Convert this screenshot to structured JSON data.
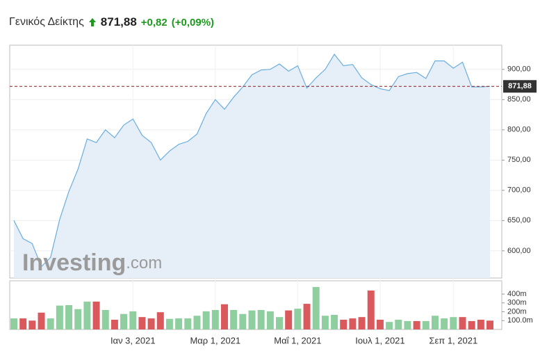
{
  "header": {
    "title": "Γενικός Δείκτης",
    "price": "871,88",
    "change": "+0,82",
    "change_pct": "(+0,09%)"
  },
  "watermark": {
    "brand": "Investing",
    "suffix": ".com"
  },
  "chart_data": [
    {
      "type": "area",
      "categories": [
        null,
        null,
        null,
        null,
        null,
        null,
        null,
        null,
        null,
        null,
        null,
        null,
        null,
        "Ιαν 3, 2021",
        null,
        null,
        null,
        null,
        null,
        null,
        null,
        null,
        "Μαρ 1, 2021",
        null,
        null,
        null,
        null,
        null,
        null,
        null,
        null,
        "Μαΐ 1, 2021",
        null,
        null,
        null,
        null,
        null,
        null,
        null,
        null,
        "Ιουλ 1, 2021",
        null,
        null,
        null,
        null,
        null,
        null,
        null,
        "Σεπ 1, 2021",
        null,
        null,
        null,
        null
      ],
      "values": [
        650,
        620,
        612,
        574,
        589,
        652,
        698,
        735,
        785,
        779,
        800,
        787,
        808,
        818,
        791,
        779,
        750,
        765,
        776,
        781,
        793,
        827,
        850,
        834,
        854,
        871,
        891,
        899,
        900,
        909,
        897,
        906,
        869,
        886,
        900,
        925,
        906,
        908,
        886,
        875,
        868,
        865,
        888,
        893,
        895,
        885,
        914,
        914,
        902,
        912,
        871,
        871,
        871.88
      ],
      "color": "#6aaee0",
      "fill": "#e6eef7",
      "ylim": [
        555,
        940
      ],
      "yticks": [
        {
          "value": 600,
          "label": "600,00"
        },
        {
          "value": 650,
          "label": "650,00"
        },
        {
          "value": 700,
          "label": "700,00"
        },
        {
          "value": 750,
          "label": "750,00"
        },
        {
          "value": 800,
          "label": "800,00"
        },
        {
          "value": 850,
          "label": "850,00"
        },
        {
          "value": 900,
          "label": "900,00"
        }
      ],
      "current": {
        "value": 871.88,
        "label": "871,88"
      },
      "current_color": "#8b1a1a",
      "grid": true
    },
    {
      "type": "bar",
      "values": [
        125,
        125,
        100,
        190,
        125,
        270,
        275,
        230,
        315,
        315,
        220,
        110,
        175,
        205,
        140,
        125,
        195,
        120,
        125,
        125,
        155,
        205,
        220,
        285,
        220,
        175,
        215,
        220,
        205,
        140,
        215,
        235,
        290,
        480,
        155,
        165,
        110,
        125,
        140,
        440,
        110,
        85,
        110,
        95,
        95,
        95,
        155,
        125,
        140,
        140,
        95,
        110,
        100
      ],
      "colors": [
        "#8fcf9f",
        "#d9595c",
        "#d9595c",
        "#d9595c",
        "#8fcf9f",
        "#8fcf9f",
        "#8fcf9f",
        "#8fcf9f",
        "#8fcf9f",
        "#d9595c",
        "#8fcf9f",
        "#d9595c",
        "#8fcf9f",
        "#8fcf9f",
        "#d9595c",
        "#d9595c",
        "#d9595c",
        "#8fcf9f",
        "#8fcf9f",
        "#8fcf9f",
        "#8fcf9f",
        "#8fcf9f",
        "#8fcf9f",
        "#d9595c",
        "#8fcf9f",
        "#8fcf9f",
        "#8fcf9f",
        "#8fcf9f",
        "#8fcf9f",
        "#8fcf9f",
        "#d9595c",
        "#8fcf9f",
        "#d9595c",
        "#8fcf9f",
        "#8fcf9f",
        "#8fcf9f",
        "#d9595c",
        "#d9595c",
        "#d9595c",
        "#d9595c",
        "#d9595c",
        "#8fcf9f",
        "#8fcf9f",
        "#8fcf9f",
        "#d9595c",
        "#8fcf9f",
        "#8fcf9f",
        "#8fcf9f",
        "#8fcf9f",
        "#d9595c",
        "#d9595c",
        "#d9595c",
        "#d9595c"
      ],
      "ylim": [
        0,
        550
      ],
      "yticks": [
        {
          "value": 100,
          "label": "100.0m"
        },
        {
          "value": 200,
          "label": "200m"
        },
        {
          "value": 300,
          "label": "300m"
        },
        {
          "value": 400,
          "label": "400m"
        }
      ]
    }
  ]
}
